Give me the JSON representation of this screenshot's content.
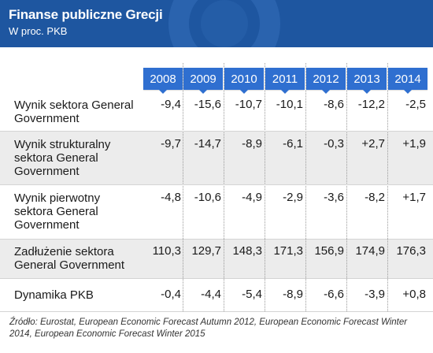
{
  "header": {
    "title": "Finanse publiczne Grecji",
    "subtitle": "W proc. PKB"
  },
  "chart_data": {
    "type": "table",
    "title": "Finanse publiczne Grecji",
    "subtitle": "W proc. PKB",
    "columns": [
      "2008",
      "2009",
      "2010",
      "2011",
      "2012",
      "2013",
      "2014"
    ],
    "rows": [
      {
        "label": "Wynik sektora General Government",
        "values": [
          "-9,4",
          "-15,6",
          "-10,7",
          "-10,1",
          "-8,6",
          "-12,2",
          "-2,5"
        ]
      },
      {
        "label": "Wynik strukturalny sektora General Government",
        "values": [
          "-9,7",
          "-14,7",
          "-8,9",
          "-6,1",
          "-0,3",
          "+2,7",
          "+1,9"
        ]
      },
      {
        "label": "Wynik pierwotny sektora General Government",
        "values": [
          "-4,8",
          "-10,6",
          "-4,9",
          "-2,9",
          "-3,6",
          "-8,2",
          "+1,7"
        ]
      },
      {
        "label": "Zadłużenie sektora General Government",
        "values": [
          "110,3",
          "129,7",
          "148,3",
          "171,3",
          "156,9",
          "174,9",
          "176,3"
        ]
      },
      {
        "label": "Dynamika PKB",
        "values": [
          "-0,4",
          "-4,4",
          "-5,4",
          "-8,9",
          "-6,6",
          "-3,9",
          "+0,8"
        ]
      }
    ]
  },
  "source": "Źródło: Eurostat, European Economic Forecast Autumn 2012, European Economic Forecast Winter 2014, European Economic Forecast Winter 2015",
  "colors": {
    "header_bg": "#1e56a0",
    "badge_bg": "#2f6fd0",
    "shaded_row": "#ececec"
  }
}
